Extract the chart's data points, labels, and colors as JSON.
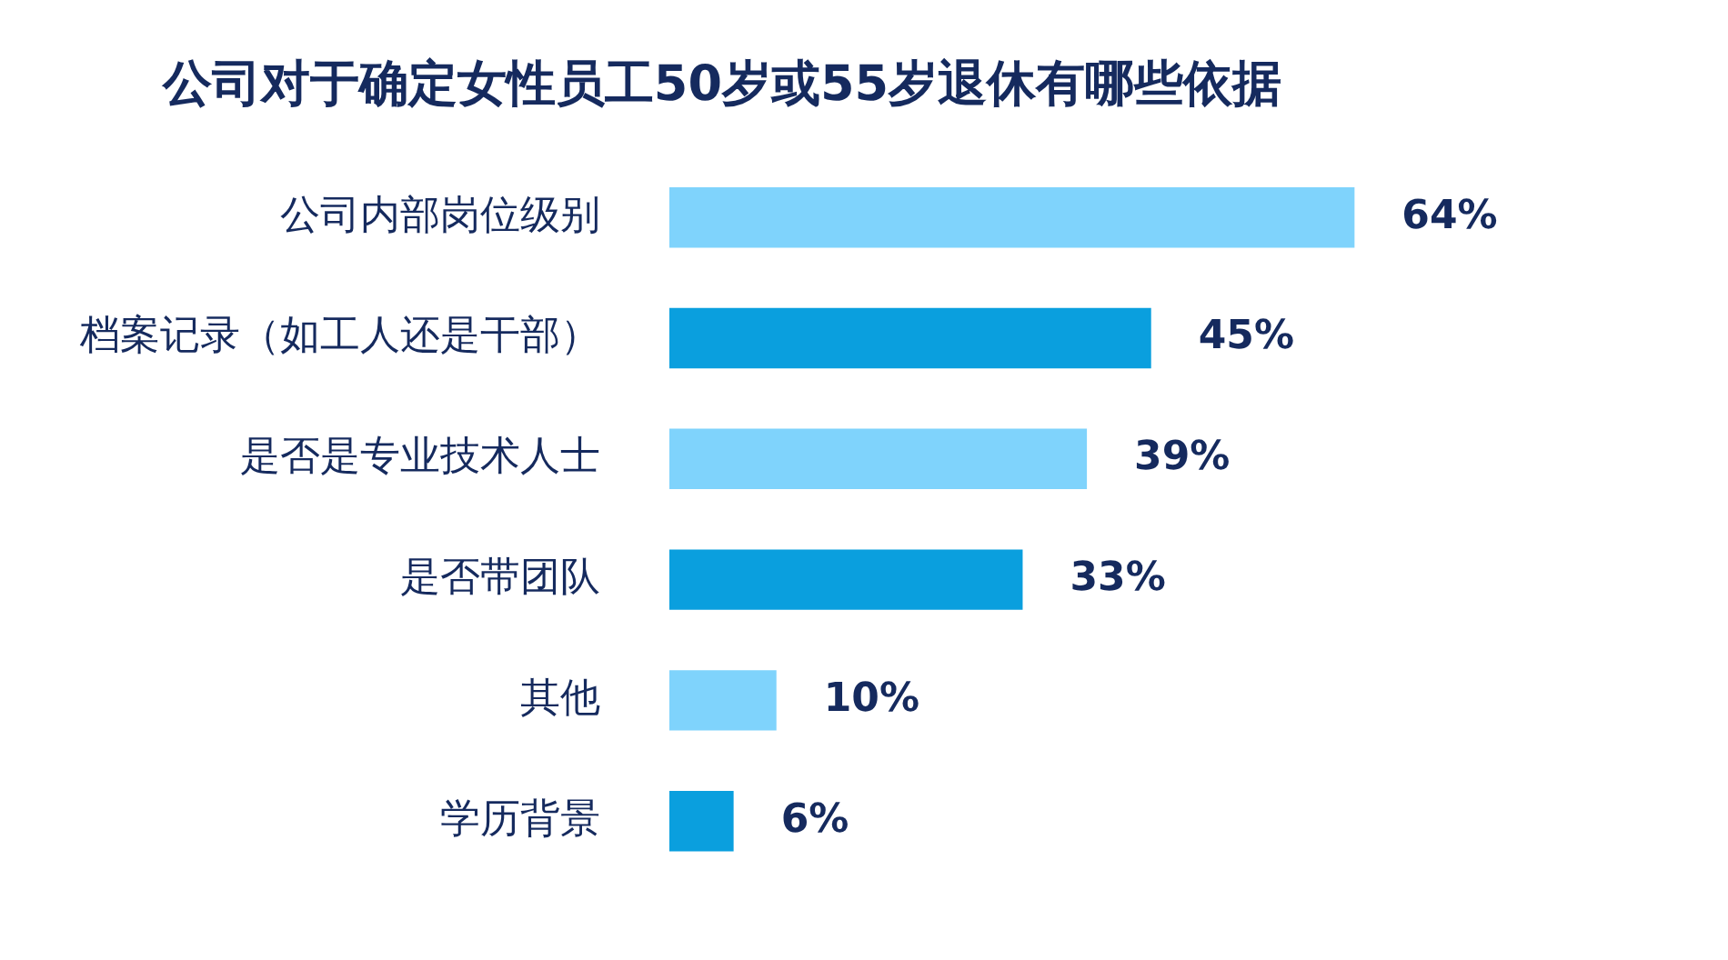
{
  "chart_data": {
    "type": "bar",
    "orientation": "horizontal",
    "title": "公司对于确定女性员工50岁或55岁退休有哪些依据",
    "categories": [
      "公司内部岗位级别",
      "档案记录（如工人还是干部）",
      "是否是专业技术人士",
      "是否带团队",
      "其他",
      "学历背景"
    ],
    "values": [
      64,
      45,
      39,
      33,
      10,
      6
    ],
    "colors": [
      "#7fd3fc",
      "#0a9fde",
      "#7fd3fc",
      "#0a9fde",
      "#7fd3fc",
      "#0a9fde"
    ],
    "value_labels": [
      "64%",
      "45%",
      "39%",
      "33%",
      "10%",
      "6%"
    ],
    "legend": false
  }
}
